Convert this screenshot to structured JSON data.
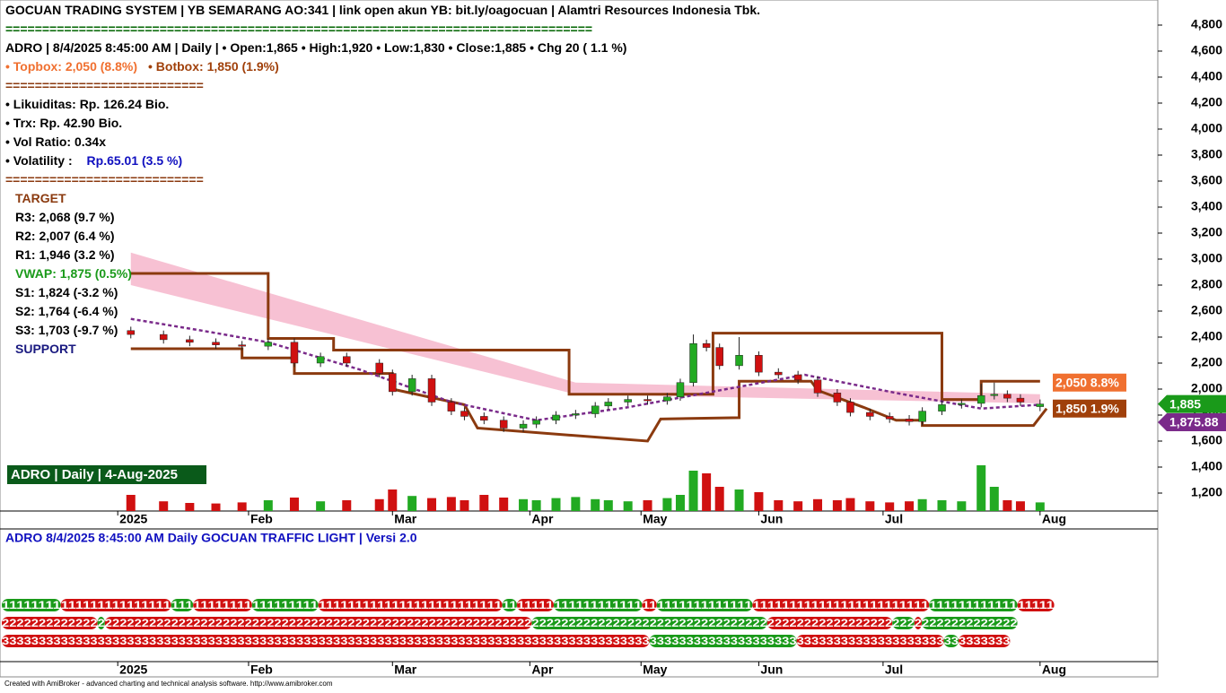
{
  "chart_data": {
    "type": "candlestick",
    "info_lines": [
      [
        {
          "text": "GOCUAN TRADING SYSTEM | YB SEMARANG AO:341 | link open akun YB: bit.ly/oagocuan  | Alamtri Resources Indonesia Tbk.",
          "color": "#000000"
        }
      ],
      [
        {
          "text": "================================================================================",
          "color": "#006400"
        }
      ],
      [
        {
          "text": "ADRO | 8/4/2025 8:45:00 AM | Daily |  • Open:1,865 • High:1,920 • Low:1,830 • Close:1,885 • Chg 20 ( 1.1 %)",
          "color": "#000000"
        }
      ],
      [
        {
          "text": "• Topbox: 2,050 (8.8%)",
          "color": "#f07030"
        },
        {
          "text": "• Botbox: 1,850 (1.9%)",
          "color": "#a0400a"
        }
      ],
      [
        {
          "text": "===========================",
          "color": "#8b3a0f"
        }
      ],
      [
        {
          "text": "• Likuiditas: Rp. 126.24 Bio.",
          "color": "#000000"
        }
      ],
      [
        {
          "text": "• Trx: Rp.  42.90 Bio.",
          "color": "#000000"
        }
      ],
      [
        {
          "text": "• Vol Ratio:  0.34x",
          "color": "#000000"
        }
      ],
      [
        {
          "text": "• Volatility : ",
          "color": "#000000"
        },
        {
          "text": "Rp.65.01 (3.5 %)",
          "color": "#1010c0"
        }
      ],
      [
        {
          "text": "===========================",
          "color": "#8b3a0f"
        }
      ],
      [
        {
          "text": "TARGET",
          "color": "#8b3a0f"
        }
      ],
      [
        {
          "text": "R3: 2,068 (9.7 %)",
          "color": "#000000"
        }
      ],
      [
        {
          "text": "R2: 2,007 (6.4 %)",
          "color": "#000000"
        }
      ],
      [
        {
          "text": "R1: 1,946 (3.2 %)",
          "color": "#000000"
        }
      ],
      [
        {
          "text": "VWAP: 1,875 (0.5%)",
          "color": "#1a9a1a"
        }
      ],
      [
        {
          "text": "S1: 1,824 (-3.2 %)",
          "color": "#000000"
        }
      ],
      [
        {
          "text": "S2: 1,764 (-6.4 %)",
          "color": "#000000"
        }
      ],
      [
        {
          "text": "S3: 1,703 (-9.7 %)",
          "color": "#000000"
        }
      ],
      [
        {
          "text": "SUPPORT",
          "color": "#1a1a80"
        }
      ]
    ],
    "panel_title": "ADRO | Daily | 4-Aug-2025",
    "lower_title": "ADRO  8/4/2025 8:45:00 AM  Daily  GOCUAN TRAFFIC LIGHT | Versi 2.0",
    "footer": "Created with AmiBroker - advanced charting and technical analysis software. http://www.amibroker.com",
    "xlim": [
      0,
      177
    ],
    "xticks": [
      {
        "value": 18,
        "label": "2025"
      },
      {
        "value": 38,
        "label": "Feb"
      },
      {
        "value": 60,
        "label": "Mar"
      },
      {
        "value": 81,
        "label": "Apr"
      },
      {
        "value": 98,
        "label": "May"
      },
      {
        "value": 116,
        "label": "Jun"
      },
      {
        "value": 135,
        "label": "Jul"
      },
      {
        "value": 159,
        "label": "Aug"
      }
    ],
    "ylim": [
      1062,
      4993
    ],
    "yticks": [
      {
        "value": 1200,
        "label": "1,200"
      },
      {
        "value": 1400,
        "label": "1,400"
      },
      {
        "value": 1600,
        "label": "1,600"
      },
      {
        "value": 1800,
        "label": "1,800"
      },
      {
        "value": 2000,
        "label": "2,000"
      },
      {
        "value": 2200,
        "label": "2,200"
      },
      {
        "value": 2400,
        "label": "2,400"
      },
      {
        "value": 2600,
        "label": "2,600"
      },
      {
        "value": 2800,
        "label": "2,800"
      },
      {
        "value": 3000,
        "label": "3,000"
      },
      {
        "value": 3200,
        "label": "3,200"
      },
      {
        "value": 3400,
        "label": "3,400"
      },
      {
        "value": 3600,
        "label": "3,600"
      },
      {
        "value": 3800,
        "label": "3,800"
      },
      {
        "value": 4000,
        "label": "4,000"
      },
      {
        "value": 4200,
        "label": "4,200"
      },
      {
        "value": 4400,
        "label": "4,400"
      },
      {
        "value": 4600,
        "label": "4,600"
      },
      {
        "value": 4800,
        "label": "4,800"
      }
    ],
    "up_color": "#22aa22",
    "down_color": "#d01010",
    "x": [
      20,
      25,
      29,
      33,
      37,
      41,
      45,
      49,
      53,
      58,
      60,
      63,
      66,
      69,
      71,
      74,
      77,
      80,
      82,
      85,
      88,
      91,
      93,
      96,
      99,
      102,
      104,
      106,
      108,
      110,
      113,
      116,
      119,
      122,
      125,
      128,
      130,
      133,
      136,
      139,
      141,
      144,
      147,
      150,
      152,
      154,
      156,
      159
    ],
    "open": [
      2450,
      2420,
      2380,
      2360,
      2340,
      2330,
      2360,
      2200,
      2250,
      2200,
      2120,
      1980,
      2080,
      1900,
      1830,
      1790,
      1760,
      1700,
      1730,
      1760,
      1800,
      1810,
      1870,
      1900,
      1920,
      1910,
      1940,
      2050,
      2350,
      2320,
      2180,
      2260,
      2130,
      2110,
      2070,
      1970,
      1900,
      1820,
      1790,
      1770,
      1750,
      1830,
      1880,
      1890,
      1950,
      1960,
      1930,
      1865
    ],
    "high": [
      2480,
      2450,
      2410,
      2390,
      2370,
      2390,
      2390,
      2280,
      2280,
      2230,
      2150,
      2110,
      2110,
      1930,
      1860,
      1820,
      1790,
      1760,
      1790,
      1830,
      1840,
      1900,
      1930,
      1950,
      1950,
      1970,
      2080,
      2420,
      2380,
      2350,
      2400,
      2290,
      2160,
      2140,
      2100,
      2000,
      1930,
      1850,
      1820,
      1800,
      1860,
      1910,
      1920,
      2040,
      2050,
      1990,
      1960,
      1920
    ],
    "low": [
      2390,
      2350,
      2330,
      2310,
      2300,
      2300,
      2170,
      2170,
      2170,
      2090,
      1950,
      1950,
      1870,
      1800,
      1760,
      1730,
      1670,
      1670,
      1700,
      1730,
      1770,
      1780,
      1840,
      1870,
      1880,
      1880,
      1910,
      2020,
      2290,
      2150,
      2150,
      2100,
      2080,
      2040,
      1940,
      1870,
      1790,
      1760,
      1740,
      1720,
      1720,
      1800,
      1850,
      1860,
      1920,
      1900,
      1870,
      1830
    ],
    "close": [
      2420,
      2380,
      2360,
      2340,
      2330,
      2360,
      2200,
      2250,
      2200,
      2120,
      1980,
      2080,
      1900,
      1830,
      1790,
      1760,
      1700,
      1730,
      1760,
      1800,
      1810,
      1870,
      1900,
      1920,
      1910,
      1940,
      2050,
      2350,
      2320,
      2180,
      2260,
      2130,
      2110,
      2070,
      1970,
      1900,
      1820,
      1790,
      1770,
      1750,
      1830,
      1880,
      1890,
      1950,
      1960,
      1930,
      1900,
      1885
    ],
    "volume": [
      30,
      18,
      15,
      14,
      16,
      20,
      25,
      18,
      20,
      22,
      40,
      28,
      24,
      26,
      20,
      30,
      25,
      22,
      20,
      24,
      26,
      22,
      20,
      18,
      20,
      24,
      30,
      75,
      70,
      45,
      40,
      35,
      20,
      18,
      22,
      20,
      24,
      18,
      16,
      18,
      22,
      20,
      18,
      85,
      45,
      20,
      18,
      16
    ],
    "volume_ylim": [
      0,
      100
    ],
    "ribbon": {
      "color": "#f4a6c0",
      "x": [
        20,
        88,
        159
      ],
      "top": [
        3050,
        2050,
        1960
      ],
      "bottom": [
        2800,
        1960,
        1890
      ]
    },
    "lines": [
      {
        "color": "#8b3a0f",
        "x": [
          20,
          41,
          41,
          51,
          51,
          87,
          87,
          109,
          109,
          144,
          144,
          150,
          150,
          159
        ],
        "values": [
          2890,
          2890,
          2390,
          2390,
          2300,
          2300,
          1960,
          1960,
          2430,
          2430,
          1920,
          1920,
          2060,
          2060
        ]
      },
      {
        "color": "#8b3a0f",
        "x": [
          20,
          37,
          37,
          45,
          45,
          60,
          60,
          71,
          73,
          99,
          101,
          113,
          113,
          124,
          125,
          132,
          137,
          141,
          141,
          158,
          160
        ],
        "values": [
          2310,
          2310,
          2240,
          2240,
          2120,
          2120,
          2000,
          1880,
          1700,
          1600,
          1770,
          1780,
          2060,
          2060,
          1990,
          1860,
          1760,
          1760,
          1720,
          1720,
          1850
        ]
      },
      {
        "color": "#7a2a8a",
        "dash": true,
        "x": [
          20,
          32,
          41,
          55,
          69,
          82,
          96,
          110,
          123,
          137,
          150,
          159
        ],
        "values": [
          2540,
          2440,
          2360,
          2150,
          1900,
          1760,
          1860,
          1990,
          2110,
          1970,
          1850,
          1880
        ]
      }
    ],
    "price_labels": [
      {
        "value": 2050,
        "label": "2,050 8.8%",
        "color": "#f07030"
      },
      {
        "value": 1850,
        "label": "1,850 1.9%",
        "color": "#a0400a"
      },
      {
        "value": 1885,
        "label": "1,885",
        "color": "#1a9a1a"
      },
      {
        "value": 1875.88,
        "label": "1,875.88",
        "color": "#7a2a8a"
      }
    ],
    "traffic_rows": [
      [
        {
          "text": "11111111",
          "color": "#1a9a1a"
        },
        {
          "text": "111111111111111",
          "color": "#d01010"
        },
        {
          "text": "111",
          "color": "#1a9a1a"
        },
        {
          "text": "11111111",
          "color": "#d01010"
        },
        {
          "text": "111111111",
          "color": "#1a9a1a"
        },
        {
          "text": "1111111111111111111111111",
          "color": "#d01010"
        },
        {
          "text": "11",
          "color": "#1a9a1a"
        },
        {
          "text": "11111",
          "color": "#d01010"
        },
        {
          "text": "111111111111",
          "color": "#1a9a1a"
        },
        {
          "text": "11",
          "color": "#d01010"
        },
        {
          "text": "1111111111111",
          "color": "#1a9a1a"
        },
        {
          "text": "111111111111111111111111",
          "color": "#d01010"
        },
        {
          "text": "111111111111",
          "color": "#1a9a1a"
        },
        {
          "text": "11111",
          "color": "#d01010"
        }
      ],
      [
        {
          "text": "2222222222222",
          "color": "#d01010"
        },
        {
          "text": "2",
          "color": "#1a9a1a"
        },
        {
          "text": "2222222222222222222222222222222222222222222222222222222222",
          "color": "#d01010"
        },
        {
          "text": "22222222222222222222222222222222",
          "color": "#1a9a1a"
        },
        {
          "text": "22222222222222222",
          "color": "#d01010"
        },
        {
          "text": "222",
          "color": "#1a9a1a"
        },
        {
          "text": "2",
          "color": "#d01010"
        },
        {
          "text": "2222222222222",
          "color": "#1a9a1a"
        }
      ],
      [
        {
          "text": "3333333333333333333333333333333333333333333333333333333333333333333333333333333333333333",
          "color": "#d01010"
        },
        {
          "text": "33333333333333333333",
          "color": "#1a9a1a"
        },
        {
          "text": "33333333333333333333",
          "color": "#d01010"
        },
        {
          "text": "33",
          "color": "#1a9a1a"
        },
        {
          "text": "3333333",
          "color": "#d01010"
        }
      ]
    ]
  }
}
